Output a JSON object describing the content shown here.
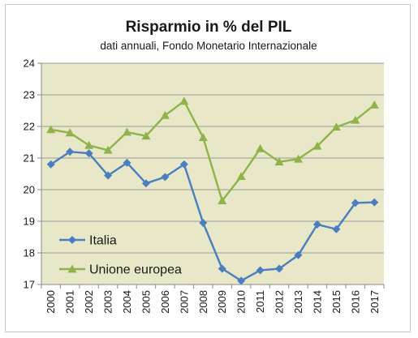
{
  "chart_data": {
    "type": "line",
    "title": "Risparmio in % del PIL",
    "subtitle": "dati annuali, Fondo Monetario Internazionale",
    "xlabel": "",
    "ylabel": "",
    "x": [
      "2000",
      "2001",
      "2002",
      "2003",
      "2004",
      "2005",
      "2006",
      "2007",
      "2008",
      "2009",
      "2010",
      "2011",
      "2012",
      "2013",
      "2014",
      "2015",
      "2016",
      "2017"
    ],
    "ylim": [
      17,
      24
    ],
    "yticks": [
      17,
      18,
      19,
      20,
      21,
      22,
      23,
      24
    ],
    "grid": true,
    "plot_background": "#e8e8c8",
    "legend_position": "bottom-left",
    "series": [
      {
        "name": "Italia",
        "color": "#4a7ebf",
        "marker": "diamond",
        "values": [
          20.8,
          21.2,
          21.15,
          20.45,
          20.85,
          20.2,
          20.4,
          20.8,
          18.95,
          17.5,
          17.12,
          17.45,
          17.5,
          17.93,
          18.9,
          18.75,
          19.58,
          19.6
        ]
      },
      {
        "name": "Unione europea",
        "color": "#8fb34a",
        "marker": "triangle",
        "values": [
          21.9,
          21.8,
          21.4,
          21.25,
          21.82,
          21.7,
          22.35,
          22.8,
          21.65,
          19.65,
          20.42,
          21.3,
          20.88,
          20.97,
          21.38,
          21.98,
          22.2,
          22.68
        ]
      }
    ]
  }
}
